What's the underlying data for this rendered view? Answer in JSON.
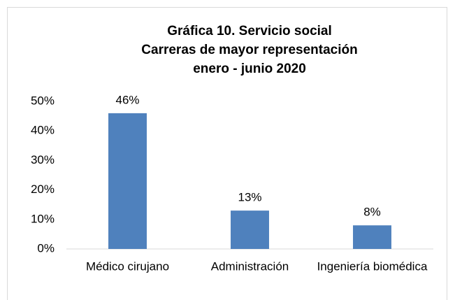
{
  "chart_data": {
    "type": "bar",
    "title": [
      "Gráfica 10. Servicio social",
      "Carreras de mayor representación",
      "enero - junio 2020"
    ],
    "categories": [
      "Médico cirujano",
      "Administración",
      "Ingeniería biomédica"
    ],
    "values": [
      46,
      13,
      8
    ],
    "value_labels": [
      "46%",
      "13%",
      "8%"
    ],
    "color": "#4f81bd",
    "ylim": [
      0,
      50
    ],
    "yticks": [
      {
        "value": 0,
        "label": "0%"
      },
      {
        "value": 10,
        "label": "10%"
      },
      {
        "value": 20,
        "label": "20%"
      },
      {
        "value": 30,
        "label": "30%"
      },
      {
        "value": 40,
        "label": "40%"
      },
      {
        "value": 50,
        "label": "50%"
      }
    ],
    "grid": false
  }
}
